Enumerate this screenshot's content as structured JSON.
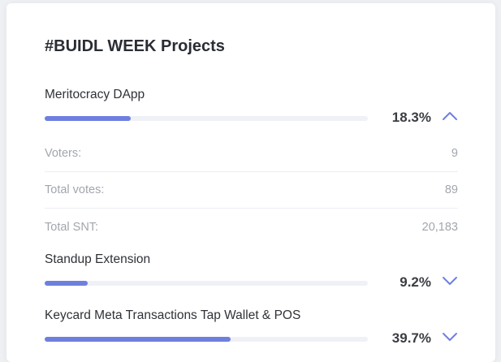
{
  "panel": {
    "title": "#BUIDL WEEK Projects"
  },
  "colors": {
    "accent": "#6f7fe0",
    "track": "#eff1f6"
  },
  "projects": [
    {
      "name": "Meritocracy DApp",
      "percent_label": "18.3%",
      "percent": 18.3,
      "expanded": true,
      "toggle_icon": "chevron-up-icon",
      "stats": [
        {
          "label": "Voters:",
          "value": "9"
        },
        {
          "label": "Total votes:",
          "value": "89"
        },
        {
          "label": "Total SNT:",
          "value": "20,183"
        }
      ]
    },
    {
      "name": "Standup Extension",
      "percent_label": "9.2%",
      "percent": 9.2,
      "expanded": false,
      "toggle_icon": "chevron-down-icon"
    },
    {
      "name": "Keycard Meta Transactions Tap Wallet & POS",
      "percent_label": "39.7%",
      "percent": 39.7,
      "expanded": false,
      "toggle_icon": "chevron-down-icon"
    }
  ]
}
